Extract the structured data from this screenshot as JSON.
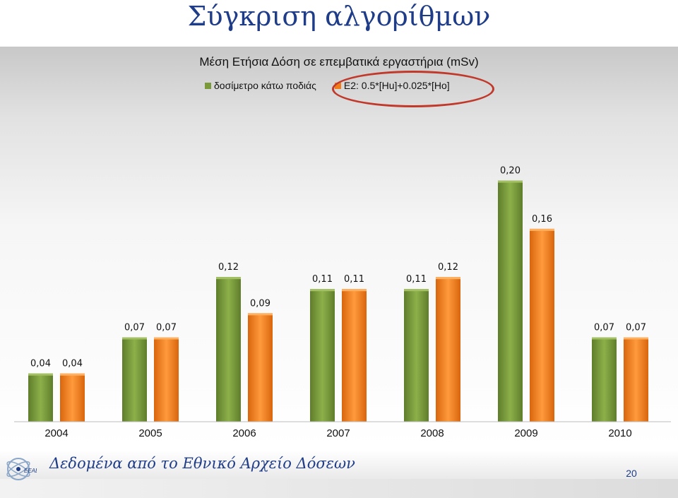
{
  "slide": {
    "title": "Σύγκριση αλγορίθμων",
    "source": "Δεδομένα από το Εθνικό Αρχείο Δόσεων",
    "page_number": "20",
    "logo_text": "ΕΕΑΕ"
  },
  "colors": {
    "green": "#7a9a3a",
    "orange": "#f07d1a",
    "title": "#1f3c88",
    "highlight": "#c0392b"
  },
  "chart_data": {
    "type": "bar",
    "title": "Μέση Ετήσια Δόση σε επεμβατικά εργαστήρια (mSv)",
    "categories": [
      "2004",
      "2005",
      "2006",
      "2007",
      "2008",
      "2009",
      "2010"
    ],
    "series": [
      {
        "name": "δοσίμετρο κάτω ποδιάς",
        "values": [
          0.04,
          0.07,
          0.12,
          0.11,
          0.11,
          0.2,
          0.07
        ],
        "labels": [
          "0,04",
          "0,07",
          "0,12",
          "0,11",
          "0,11",
          "0,20",
          "0,07"
        ]
      },
      {
        "name": "E2: 0.5*[Hu]+0.025*[Ho]",
        "values": [
          0.04,
          0.07,
          0.09,
          0.11,
          0.12,
          0.16,
          0.07
        ],
        "labels": [
          "0,04",
          "0,07",
          "0,09",
          "0,11",
          "0,12",
          "0,16",
          "0,07"
        ]
      }
    ],
    "ylim": [
      0,
      0.215
    ],
    "legend": "top",
    "grid": false
  }
}
